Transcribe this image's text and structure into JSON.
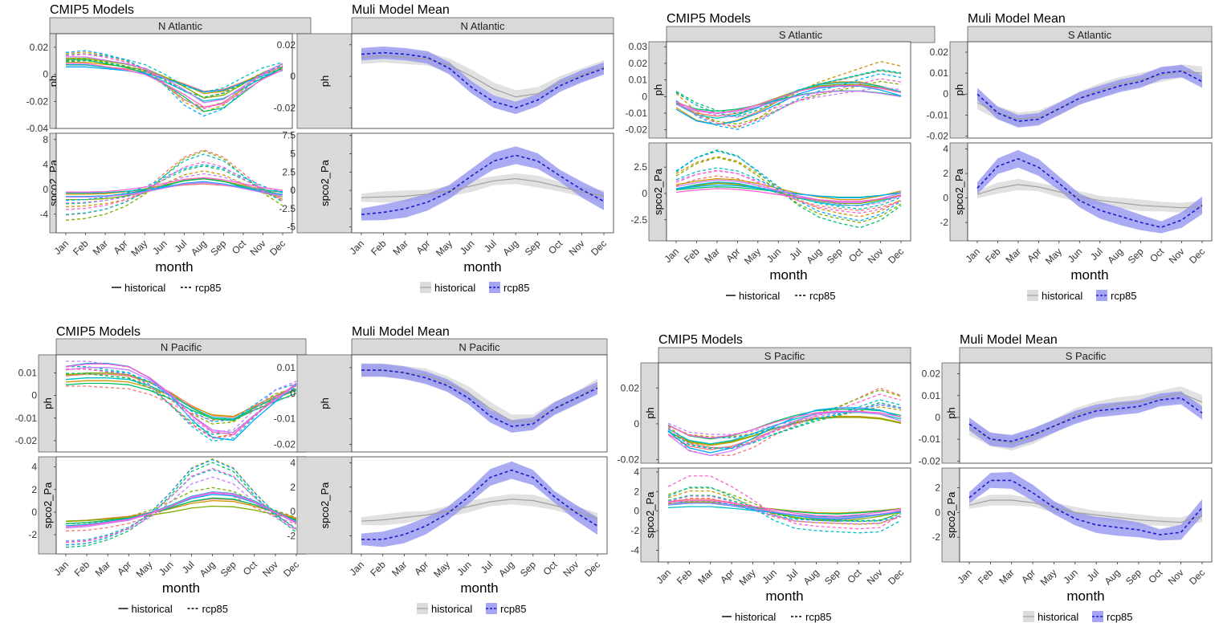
{
  "months": [
    "Jan",
    "Feb",
    "Mar",
    "Apr",
    "May",
    "Jun",
    "Jul",
    "Aug",
    "Sep",
    "Oct",
    "Nov",
    "Dec"
  ],
  "labels": {
    "cmip_title": "CMIP5 Models",
    "mmm_title": "Muli Model Mean",
    "xlabel": "month",
    "facet_ph": "ph",
    "facet_spco2": "spco2_Pa",
    "legend_hist": "historical",
    "legend_rcp": "rcp85"
  },
  "colors": {
    "models": [
      "#F8766D",
      "#CD9600",
      "#7CAE00",
      "#00BE67",
      "#00BFC4",
      "#00A9FF",
      "#C77CFF",
      "#FF61CC"
    ],
    "hist_band": "#dcdcdc",
    "hist_line": "#a0a0a0",
    "rcp_band": "#8f8ff0",
    "rcp_line": "#1c1ccc",
    "strip": "#d9d9d9"
  },
  "chart_data": [
    {
      "type": "line",
      "region": "N Atlantic",
      "panel": "CMIP5 Models",
      "ph": {
        "yticks": [
          0.02,
          0.0,
          -0.02,
          -0.04
        ],
        "ylim": [
          -0.04,
          0.03
        ]
      },
      "spco2": {
        "yticks": [
          8,
          4,
          0,
          -4
        ],
        "ylim": [
          -7,
          9
        ]
      },
      "ph_hist_mean": [
        0.01,
        0.01,
        0.008,
        0.006,
        0.003,
        -0.003,
        -0.01,
        -0.018,
        -0.016,
        -0.008,
        0.0,
        0.006
      ],
      "ph_rcp_mean": [
        0.013,
        0.014,
        0.012,
        0.009,
        0.004,
        -0.005,
        -0.016,
        -0.022,
        -0.018,
        -0.008,
        0.001,
        0.006
      ],
      "spco2_hist_mean": [
        -1.0,
        -1.0,
        -0.9,
        -0.6,
        -0.1,
        0.6,
        1.3,
        1.6,
        1.2,
        0.5,
        -0.2,
        -0.7
      ],
      "spco2_rcp_mean": [
        -3.2,
        -3.0,
        -2.5,
        -1.6,
        -0.2,
        2.0,
        4.0,
        4.9,
        4.0,
        2.0,
        0.0,
        -1.5
      ]
    },
    {
      "type": "area",
      "region": "N Atlantic",
      "panel": "Muli Model Mean",
      "ph": {
        "yticks": [
          0.02,
          0.0,
          -0.02
        ],
        "ylim": [
          -0.033,
          0.027
        ]
      },
      "spco2": {
        "yticks": [
          7.5,
          5.0,
          2.5,
          0.0,
          -2.5,
          -5.0
        ],
        "ylim": [
          -5.8,
          7.8
        ]
      },
      "ph_hist_mean": [
        0.012,
        0.013,
        0.012,
        0.011,
        0.007,
        0.0,
        -0.008,
        -0.013,
        -0.011,
        -0.004,
        0.001,
        0.006
      ],
      "ph_rcp_mean": [
        0.014,
        0.015,
        0.014,
        0.012,
        0.005,
        -0.007,
        -0.016,
        -0.02,
        -0.015,
        -0.006,
        0.0,
        0.005
      ],
      "spco2_hist_mean": [
        -1.0,
        -0.9,
        -0.8,
        -0.5,
        -0.1,
        0.6,
        1.3,
        1.6,
        1.2,
        0.5,
        -0.2,
        -0.8
      ],
      "spco2_rcp_mean": [
        -3.3,
        -3.0,
        -2.5,
        -1.6,
        -0.2,
        2.0,
        4.0,
        4.8,
        4.0,
        2.0,
        0.1,
        -1.5
      ]
    },
    {
      "type": "line",
      "region": "S Atlantic",
      "panel": "CMIP5 Models",
      "ph": {
        "yticks": [
          0.03,
          0.02,
          0.01,
          0.0,
          -0.01,
          -0.02
        ],
        "ylim": [
          -0.025,
          0.033
        ]
      },
      "spco2": {
        "yticks": [
          2.5,
          0.0,
          -2.5
        ],
        "ylim": [
          -4.5,
          4.8
        ]
      },
      "ph_hist_mean": [
        -0.004,
        -0.01,
        -0.012,
        -0.01,
        -0.006,
        -0.001,
        0.004,
        0.007,
        0.008,
        0.008,
        0.006,
        0.003
      ],
      "ph_rcp_mean": [
        0.0,
        -0.008,
        -0.013,
        -0.015,
        -0.011,
        -0.005,
        0.001,
        0.005,
        0.008,
        0.011,
        0.014,
        0.012
      ],
      "spco2_hist_mean": [
        0.5,
        0.8,
        1.0,
        0.9,
        0.6,
        0.2,
        -0.2,
        -0.5,
        -0.7,
        -0.7,
        -0.4,
        0.0
      ],
      "spco2_rcp_mean": [
        1.5,
        2.5,
        3.0,
        2.6,
        1.5,
        0.3,
        -0.8,
        -1.6,
        -2.0,
        -2.3,
        -1.8,
        -0.8
      ]
    },
    {
      "type": "area",
      "region": "S Atlantic",
      "panel": "Muli Model Mean",
      "ph": {
        "yticks": [
          0.02,
          0.01,
          0.0,
          -0.01,
          -0.02
        ],
        "ylim": [
          -0.021,
          0.025
        ]
      },
      "spco2": {
        "yticks": [
          4,
          2,
          0,
          -2
        ],
        "ylim": [
          -3.5,
          4.5
        ]
      },
      "ph_hist_mean": [
        -0.004,
        -0.009,
        -0.012,
        -0.011,
        -0.007,
        -0.002,
        0.002,
        0.005,
        0.007,
        0.009,
        0.011,
        0.01
      ],
      "ph_rcp_mean": [
        0.0,
        -0.009,
        -0.013,
        -0.012,
        -0.007,
        -0.002,
        0.001,
        0.004,
        0.006,
        0.01,
        0.011,
        0.006
      ],
      "spco2_hist_mean": [
        0.3,
        0.8,
        1.1,
        0.9,
        0.5,
        0.1,
        -0.2,
        -0.4,
        -0.6,
        -0.7,
        -0.8,
        -0.7
      ],
      "spco2_rcp_mean": [
        0.8,
        2.6,
        3.2,
        2.5,
        1.2,
        -0.2,
        -1.0,
        -1.5,
        -2.0,
        -2.4,
        -1.8,
        -0.6
      ]
    },
    {
      "type": "line",
      "region": "N Pacific",
      "panel": "CMIP5 Models",
      "ph": {
        "yticks": [
          0.01,
          0.0,
          -0.01,
          -0.02
        ],
        "ylim": [
          -0.025,
          0.018
        ]
      },
      "spco2": {
        "yticks": [
          4,
          2,
          0,
          -2
        ],
        "ylim": [
          -3.7,
          4.9
        ]
      },
      "ph_hist_mean": [
        0.01,
        0.011,
        0.011,
        0.01,
        0.006,
        0.0,
        -0.008,
        -0.014,
        -0.015,
        -0.008,
        -0.002,
        0.004
      ],
      "ph_rcp_mean": [
        0.01,
        0.01,
        0.009,
        0.008,
        0.004,
        -0.003,
        -0.01,
        -0.015,
        -0.014,
        -0.007,
        0.0,
        0.003
      ],
      "spco2_hist_mean": [
        -1.0,
        -0.9,
        -0.7,
        -0.5,
        -0.1,
        0.4,
        1.0,
        1.3,
        1.2,
        0.7,
        0.0,
        -0.7
      ],
      "spco2_rcp_mean": [
        -2.3,
        -2.2,
        -1.8,
        -1.2,
        -0.2,
        1.2,
        2.8,
        3.4,
        2.8,
        1.2,
        -0.2,
        -1.3
      ]
    },
    {
      "type": "area",
      "region": "N Pacific",
      "panel": "Muli Model Mean",
      "ph": {
        "yticks": [
          0.01,
          0.0,
          -0.01,
          -0.02
        ],
        "ylim": [
          -0.023,
          0.015
        ]
      },
      "spco2": {
        "yticks": [
          4,
          2,
          0,
          -2
        ],
        "ylim": [
          -3.5,
          4.5
        ]
      },
      "ph_hist_mean": [
        0.009,
        0.009,
        0.008,
        0.007,
        0.004,
        0.0,
        -0.006,
        -0.011,
        -0.011,
        -0.006,
        -0.002,
        0.003
      ],
      "ph_rcp_mean": [
        0.009,
        0.009,
        0.008,
        0.006,
        0.003,
        -0.002,
        -0.009,
        -0.013,
        -0.012,
        -0.006,
        -0.002,
        0.002
      ],
      "spco2_hist_mean": [
        -0.8,
        -0.7,
        -0.5,
        -0.3,
        0.0,
        0.4,
        0.8,
        1.0,
        0.9,
        0.5,
        0.0,
        -0.6
      ],
      "spco2_rcp_mean": [
        -2.3,
        -2.3,
        -1.9,
        -1.2,
        -0.2,
        1.2,
        2.8,
        3.4,
        2.8,
        1.2,
        -0.1,
        -1.2
      ]
    },
    {
      "type": "line",
      "region": "S Pacific",
      "panel": "CMIP5 Models",
      "ph": {
        "yticks": [
          0.02,
          0.0,
          -0.02
        ],
        "ylim": [
          -0.022,
          0.034
        ]
      },
      "spco2": {
        "yticks": [
          4,
          2,
          0,
          -2,
          -4
        ],
        "ylim": [
          -5.2,
          4.4
        ]
      },
      "ph_hist_mean": [
        -0.003,
        -0.01,
        -0.012,
        -0.01,
        -0.006,
        -0.001,
        0.003,
        0.006,
        0.007,
        0.007,
        0.006,
        0.003
      ],
      "ph_rcp_mean": [
        -0.002,
        -0.01,
        -0.012,
        -0.012,
        -0.009,
        -0.004,
        0.0,
        0.004,
        0.007,
        0.011,
        0.015,
        0.012
      ],
      "spco2_hist_mean": [
        0.8,
        1.0,
        1.0,
        0.7,
        0.3,
        -0.1,
        -0.5,
        -0.8,
        -0.9,
        -0.7,
        -0.4,
        0.0
      ],
      "spco2_rcp_mean": [
        1.6,
        2.4,
        2.4,
        1.6,
        0.6,
        -0.5,
        -1.2,
        -1.4,
        -1.5,
        -1.6,
        -1.5,
        -0.5
      ]
    },
    {
      "type": "area",
      "region": "S Pacific",
      "panel": "Muli Model Mean",
      "ph": {
        "yticks": [
          0.02,
          0.01,
          0.0,
          -0.01,
          -0.02
        ],
        "ylim": [
          -0.021,
          0.025
        ]
      },
      "spco2": {
        "yticks": [
          2,
          0,
          -2
        ],
        "ylim": [
          -4.0,
          3.6
        ]
      },
      "ph_hist_mean": [
        -0.005,
        -0.01,
        -0.012,
        -0.009,
        -0.004,
        0.001,
        0.004,
        0.006,
        0.007,
        0.009,
        0.011,
        0.007
      ],
      "ph_rcp_mean": [
        -0.003,
        -0.01,
        -0.011,
        -0.008,
        -0.004,
        0.0,
        0.003,
        0.004,
        0.005,
        0.008,
        0.009,
        0.002
      ],
      "spco2_hist_mean": [
        0.6,
        1.0,
        1.0,
        0.8,
        0.4,
        0.0,
        -0.2,
        -0.4,
        -0.6,
        -0.7,
        -0.8,
        -0.3
      ],
      "spco2_rcp_mean": [
        1.2,
        2.6,
        2.6,
        1.6,
        0.4,
        -0.5,
        -1.0,
        -1.2,
        -1.4,
        -1.8,
        -1.6,
        0.4
      ]
    }
  ]
}
